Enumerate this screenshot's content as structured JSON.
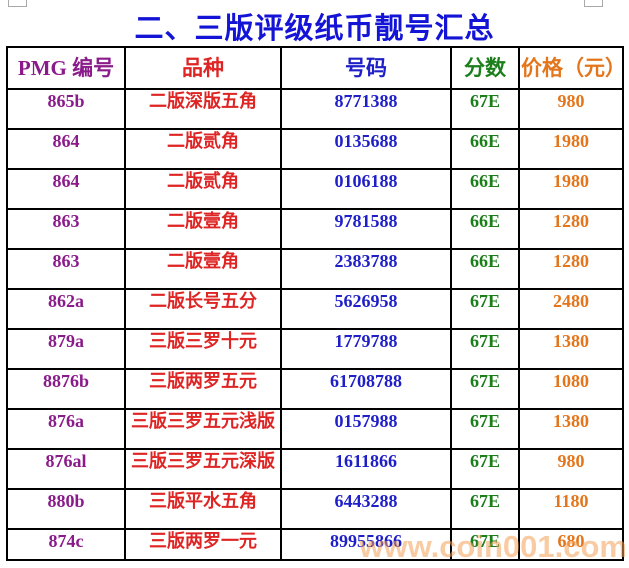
{
  "title": "二、三版评级纸币靓号汇总",
  "title_color": "#1414d6",
  "watermark": {
    "text": "www.coin001.com",
    "color": "rgba(243,160,88,0.55)"
  },
  "table": {
    "columns": [
      {
        "key": "pmg",
        "label": "PMG 编号",
        "color": "#8a1b8a"
      },
      {
        "key": "variety",
        "label": "品种",
        "color": "#df2424"
      },
      {
        "key": "number",
        "label": "号码",
        "color": "#1f1fc8"
      },
      {
        "key": "grade",
        "label": "分数",
        "color": "#1a7e1a"
      },
      {
        "key": "price",
        "label": "价格（元）",
        "color": "#e3761c"
      }
    ],
    "rows": [
      {
        "pmg": "865b",
        "variety": "二版深版五角",
        "number": "8771388",
        "grade": "67E",
        "price": "980"
      },
      {
        "pmg": "864",
        "variety": "二版贰角",
        "number": "0135688",
        "grade": "66E",
        "price": "1980"
      },
      {
        "pmg": "864",
        "variety": "二版贰角",
        "number": "0106188",
        "grade": "66E",
        "price": "1980"
      },
      {
        "pmg": "863",
        "variety": "二版壹角",
        "number": "9781588",
        "grade": "66E",
        "price": "1280"
      },
      {
        "pmg": "863",
        "variety": "二版壹角",
        "number": "2383788",
        "grade": "66E",
        "price": "1280"
      },
      {
        "pmg": "862a",
        "variety": "二版长号五分",
        "number": "5626958",
        "grade": "67E",
        "price": "2480"
      },
      {
        "pmg": "879a",
        "variety": "三版三罗十元",
        "number": "1779788",
        "grade": "67E",
        "price": "1380"
      },
      {
        "pmg": "8876b",
        "variety": "三版两罗五元",
        "number": "61708788",
        "grade": "67E",
        "price": "1080"
      },
      {
        "pmg": "876a",
        "variety": "三版三罗五元浅版",
        "number": "0157988",
        "grade": "67E",
        "price": "1380"
      },
      {
        "pmg": "876al",
        "variety": "三版三罗五元深版",
        "number": "1611866",
        "grade": "67E",
        "price": "980"
      },
      {
        "pmg": "880b",
        "variety": "三版平水五角",
        "number": "6443288",
        "grade": "67E",
        "price": "1180"
      },
      {
        "pmg": "874c",
        "variety": "三版两罗一元",
        "number": "89955866",
        "grade": "67E",
        "price": "680"
      }
    ]
  }
}
